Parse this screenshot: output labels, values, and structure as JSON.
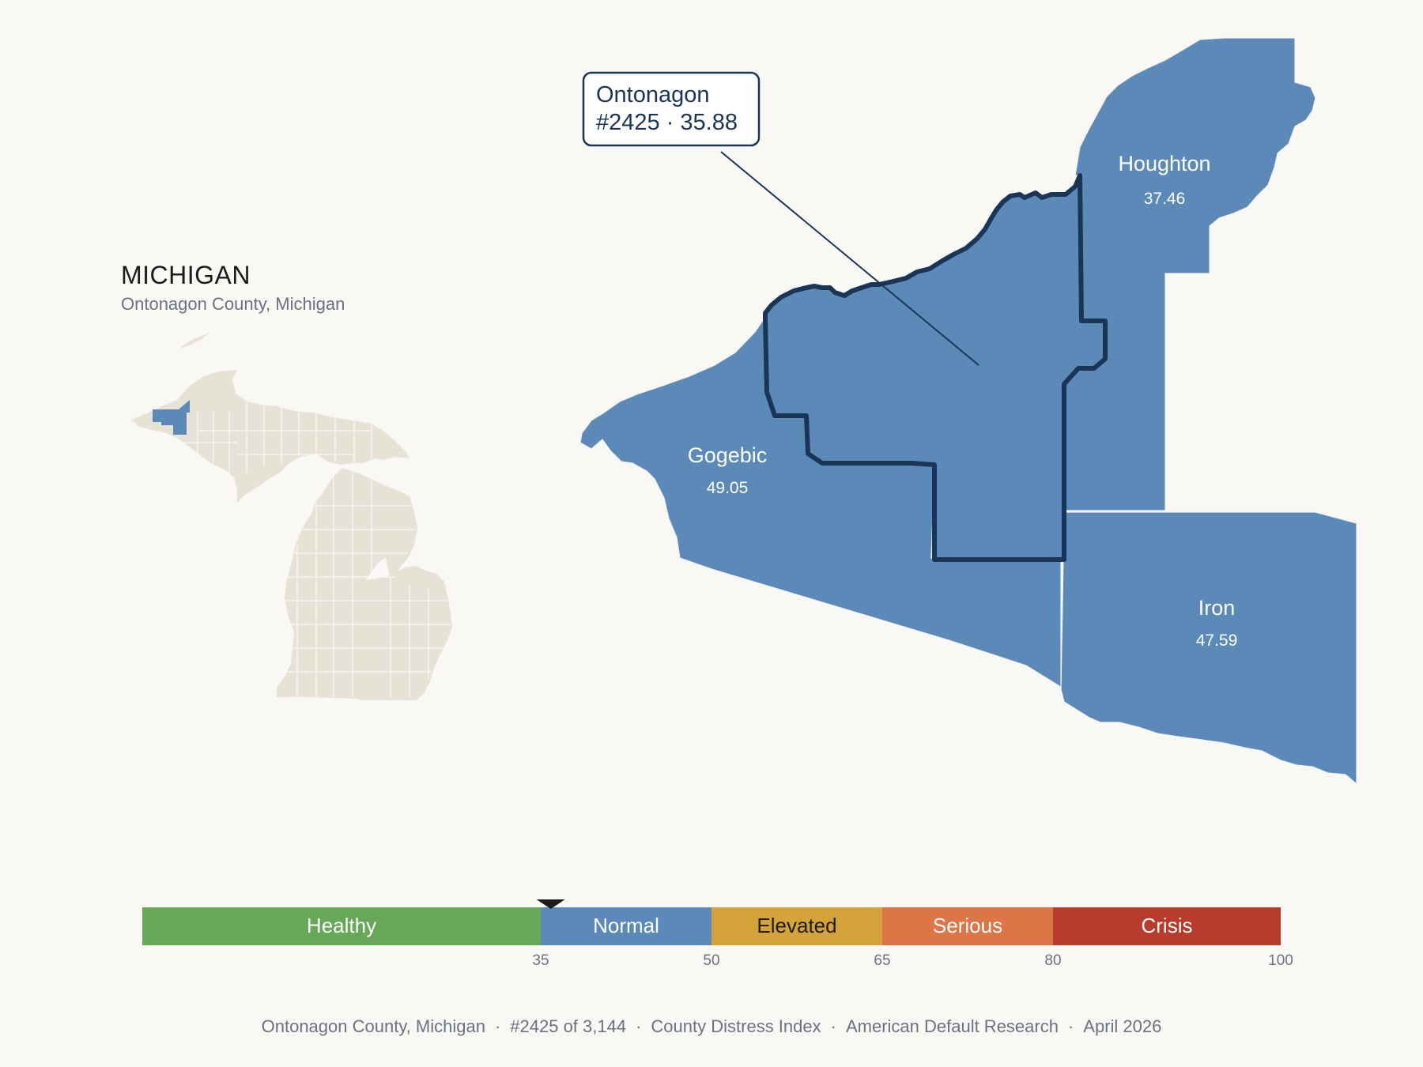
{
  "state": {
    "title": "MICHIGAN",
    "subtitle": "Ontonagon County, Michigan"
  },
  "callout": {
    "name": "Ontonagon",
    "detail": "#2425 · 35.88"
  },
  "counties": [
    {
      "name": "Houghton",
      "value": "37.46"
    },
    {
      "name": "Gogebic",
      "value": "49.05"
    },
    {
      "name": "Iron",
      "value": "47.59"
    }
  ],
  "colors": {
    "county_fill": "#5b8ab9",
    "highlight_outline": "#1b3557",
    "inset_fill": "#e7e2d6",
    "background": "#f9f8f5"
  },
  "scale": {
    "marker_value": 35.88,
    "bands": [
      {
        "label": "Healthy",
        "from": 0,
        "to": 35,
        "color": "#66a758",
        "text_color": "#ffffff"
      },
      {
        "label": "Normal",
        "from": 35,
        "to": 50,
        "color": "#5b8ab9",
        "text_color": "#ffffff"
      },
      {
        "label": "Elevated",
        "from": 50,
        "to": 65,
        "color": "#d4a33a",
        "text_color": "#1c1c1c"
      },
      {
        "label": "Serious",
        "from": 65,
        "to": 80,
        "color": "#dc7646",
        "text_color": "#ffffff"
      },
      {
        "label": "Crisis",
        "from": 80,
        "to": 100,
        "color": "#b83c2b",
        "text_color": "#ffffff"
      }
    ],
    "ticks": [
      "35",
      "50",
      "65",
      "80",
      "100"
    ]
  },
  "footer": {
    "county": "Ontonagon County, Michigan",
    "rank": "#2425 of 3,144",
    "index": "County Distress Index",
    "source": "American Default Research",
    "date": "April 2026",
    "separator": "·"
  }
}
